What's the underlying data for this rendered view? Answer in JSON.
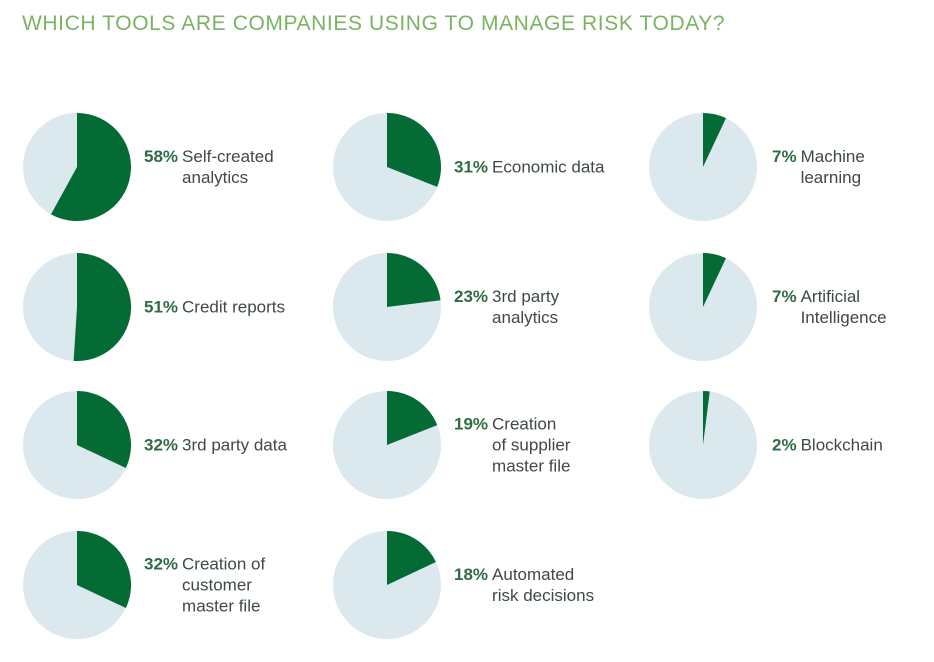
{
  "title": "WHICH TOOLS ARE COMPANIES USING TO MANAGE RISK TODAY?",
  "colors": {
    "title": "#7ab364",
    "filled": "#046b35",
    "remainder": "#dbe8ee",
    "pct_text": "#2f6b45",
    "label_text": "#3f4a44"
  },
  "chart_data": {
    "type": "pie",
    "title": "WHICH TOOLS ARE COMPANIES USING TO MANAGE RISK TODAY?",
    "items": [
      {
        "label": "Self-created\nanalytics",
        "value": 58,
        "pct_text": "58%"
      },
      {
        "label": "Credit reports",
        "value": 51,
        "pct_text": "51%"
      },
      {
        "label": "3rd party data",
        "value": 32,
        "pct_text": "32%"
      },
      {
        "label": "Creation of\ncustomer\nmaster file",
        "value": 32,
        "pct_text": "32%"
      },
      {
        "label": "Economic data",
        "value": 31,
        "pct_text": "31%"
      },
      {
        "label": "3rd party\nanalytics",
        "value": 23,
        "pct_text": "23%"
      },
      {
        "label": "Creation\nof supplier\nmaster file",
        "value": 19,
        "pct_text": "19%"
      },
      {
        "label": "Automated\nrisk decisions",
        "value": 18,
        "pct_text": "18%"
      },
      {
        "label": "Machine\nlearning",
        "value": 7,
        "pct_text": "7%"
      },
      {
        "label": "Artificial\nIntelligence",
        "value": 7,
        "pct_text": "7%"
      },
      {
        "label": "Blockchain",
        "value": 2,
        "pct_text": "2%"
      }
    ]
  }
}
